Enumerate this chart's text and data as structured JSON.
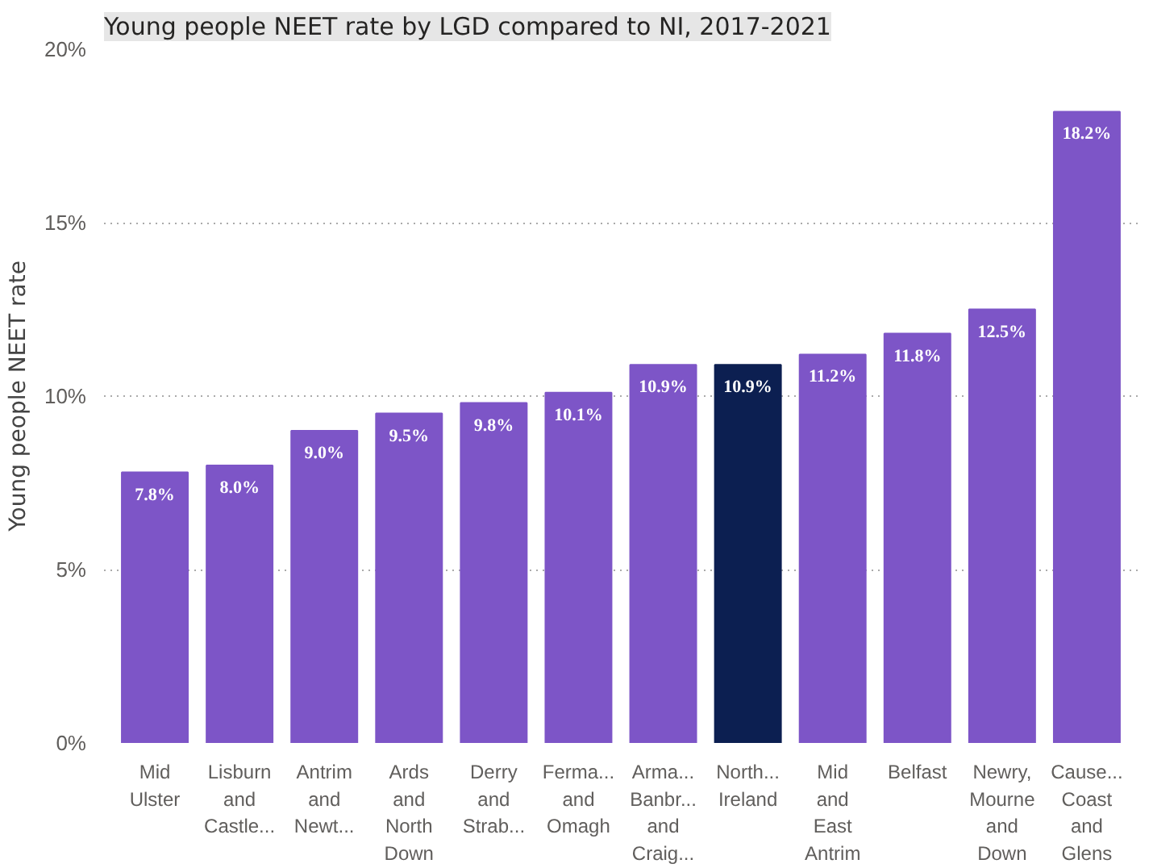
{
  "chart_data": {
    "type": "bar",
    "title": "Young people NEET rate by LGD compared to NI, 2017-2021",
    "ylabel": "Young people NEET rate",
    "categories": [
      "Mid Ulster",
      "Lisburn and Castle...",
      "Antrim and Newt...",
      "Ards and North Down",
      "Derry and Strab...",
      "Ferma... and Omagh",
      "Arma... Banbr... and Craig...",
      "North... Ireland",
      "Mid and East Antrim",
      "Belfast",
      "Newry, Mourne and Down",
      "Cause... Coast and Glens"
    ],
    "values": [
      7.8,
      8.0,
      9.0,
      9.5,
      9.8,
      10.1,
      10.9,
      10.9,
      11.2,
      11.8,
      12.5,
      18.2
    ],
    "value_labels": [
      "7.8%",
      "8.0%",
      "9.0%",
      "9.5%",
      "9.8%",
      "10.1%",
      "10.9%",
      "10.9%",
      "11.2%",
      "11.8%",
      "12.5%",
      "18.2%"
    ],
    "colors": [
      "#7d55c7",
      "#7d55c7",
      "#7d55c7",
      "#7d55c7",
      "#7d55c7",
      "#7d55c7",
      "#7d55c7",
      "#0c1f51",
      "#7d55c7",
      "#7d55c7",
      "#7d55c7",
      "#7d55c7"
    ],
    "ylim": [
      0,
      20
    ],
    "yticks": [
      {
        "value": 0,
        "label": "0%"
      },
      {
        "value": 5,
        "label": "5%"
      },
      {
        "value": 10,
        "label": "10%"
      },
      {
        "value": 15,
        "label": "15%"
      },
      {
        "value": 20,
        "label": "20%"
      }
    ],
    "grid": "y"
  }
}
